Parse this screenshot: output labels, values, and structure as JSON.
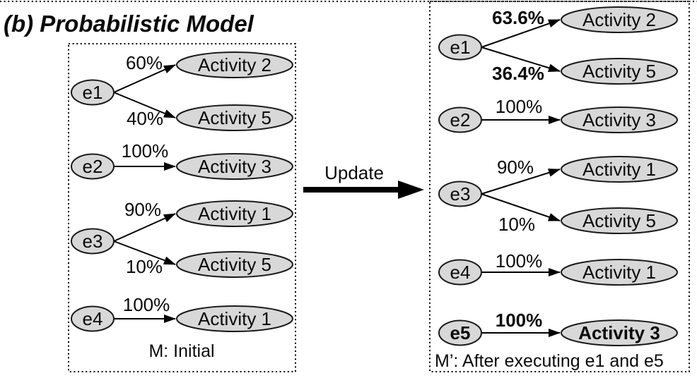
{
  "figure_title": "(b) Probabilistic Model",
  "update_label": "Update",
  "colors": {
    "node_fill": "#d8d8d8",
    "node_stroke": "#1a1a1a",
    "edge": "#000000",
    "background": "#ffffff",
    "text": "#0a0a0a"
  },
  "panels": [
    {
      "name": "initial-model",
      "caption": "M: Initial",
      "groups": [
        {
          "event": "e1",
          "bold": false,
          "edges": [
            {
              "probability": "60%",
              "bold": false,
              "target": "Activity 2",
              "target_bold": false
            },
            {
              "probability": "40%",
              "bold": false,
              "target": "Activity 5",
              "target_bold": false
            }
          ]
        },
        {
          "event": "e2",
          "bold": false,
          "edges": [
            {
              "probability": "100%",
              "bold": false,
              "target": "Activity 3",
              "target_bold": false
            }
          ]
        },
        {
          "event": "e3",
          "bold": false,
          "edges": [
            {
              "probability": "90%",
              "bold": false,
              "target": "Activity 1",
              "target_bold": false
            },
            {
              "probability": "10%",
              "bold": false,
              "target": "Activity 5",
              "target_bold": false
            }
          ]
        },
        {
          "event": "e4",
          "bold": false,
          "edges": [
            {
              "probability": "100%",
              "bold": false,
              "target": "Activity 1",
              "target_bold": false
            }
          ]
        }
      ]
    },
    {
      "name": "updated-model",
      "caption": "M’: After executing e1 and e5",
      "groups": [
        {
          "event": "e1",
          "bold": false,
          "edges": [
            {
              "probability": "63.6%",
              "bold": true,
              "target": "Activity 2",
              "target_bold": false
            },
            {
              "probability": "36.4%",
              "bold": true,
              "target": "Activity 5",
              "target_bold": false
            }
          ]
        },
        {
          "event": "e2",
          "bold": false,
          "edges": [
            {
              "probability": "100%",
              "bold": false,
              "target": "Activity 3",
              "target_bold": false
            }
          ]
        },
        {
          "event": "e3",
          "bold": false,
          "edges": [
            {
              "probability": "90%",
              "bold": false,
              "target": "Activity 1",
              "target_bold": false
            },
            {
              "probability": "10%",
              "bold": false,
              "target": "Activity 5",
              "target_bold": false
            }
          ]
        },
        {
          "event": "e4",
          "bold": false,
          "edges": [
            {
              "probability": "100%",
              "bold": false,
              "target": "Activity 1",
              "target_bold": false
            }
          ]
        },
        {
          "event": "e5",
          "bold": true,
          "edges": [
            {
              "probability": "100%",
              "bold": true,
              "target": "Activity 3",
              "target_bold": true
            }
          ]
        }
      ]
    }
  ]
}
